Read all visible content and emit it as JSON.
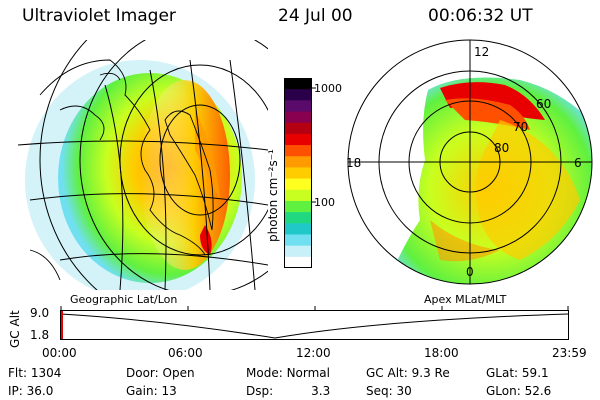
{
  "header": {
    "title": "Ultraviolet Imager",
    "date": "24 Jul 00",
    "time": "00:06:32 UT"
  },
  "colorbar": {
    "unit_label": "photon cm⁻²s⁻¹",
    "ticks": [
      "1000",
      "100"
    ],
    "colors": [
      "#000000",
      "#2a004a",
      "#5a0a6a",
      "#8a0050",
      "#b40010",
      "#e80000",
      "#ff5000",
      "#ff9a00",
      "#ffcc00",
      "#ffff20",
      "#c8ff20",
      "#60f040",
      "#20d880",
      "#20c8c8",
      "#70e0f0",
      "#c8f0f8",
      "#ffffff"
    ]
  },
  "left_panel": {
    "caption": "Geographic Lat/Lon"
  },
  "right_panel": {
    "caption": "Apex MLat/MLT",
    "mlt_labels": {
      "top": "12",
      "left": "18",
      "right": "6",
      "bottom": "0"
    },
    "mlat_labels": [
      "60",
      "70",
      "80"
    ]
  },
  "altitude_plot": {
    "axis_title": "GC Alt",
    "y_ticks": [
      "9.0",
      "1.8"
    ],
    "x_ticks": [
      "00:00",
      "06:00",
      "12:00",
      "18:00",
      "23:59"
    ]
  },
  "status": {
    "flt_label": "Flt:",
    "flt_value": "1304",
    "ip_label": "IP:",
    "ip_value": "36.0",
    "door_label": "Door:",
    "door_value": "Open",
    "gain_label": "Gain:",
    "gain_value": "13",
    "mode_label": "Mode:",
    "mode_value": "Normal",
    "dsp_label": "Dsp:",
    "dsp_value": "3.3",
    "gcalt_label": "GC Alt:",
    "gcalt_value": "9.3 Re",
    "seq_label": "Seq:",
    "seq_value": "30",
    "glat_label": "GLat:",
    "glat_value": "59.1",
    "glon_label": "GLon:",
    "glon_value": "52.6"
  }
}
